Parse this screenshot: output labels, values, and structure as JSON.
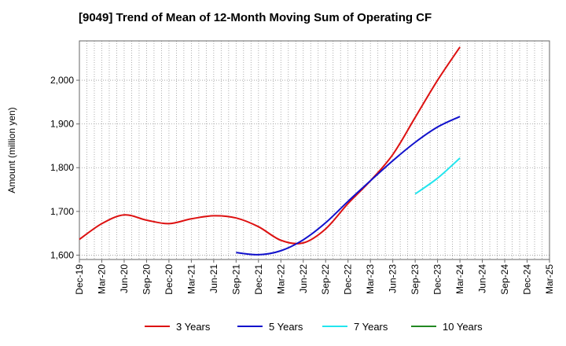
{
  "chart_data": {
    "type": "line",
    "title": "[9049]  Trend of Mean of 12-Month Moving Sum of Operating CF",
    "xlabel": "",
    "ylabel": "Amount (million yen)",
    "ylim": [
      1590,
      2090
    ],
    "yticks": [
      1600,
      1700,
      1800,
      1900,
      2000
    ],
    "ytick_labels": [
      "1,600",
      "1,700",
      "1,800",
      "1,900",
      "2,000"
    ],
    "x_start": "Dec-19",
    "x_end": "Mar-25",
    "x_tick_labels": [
      "Dec-19",
      "Mar-20",
      "Jun-20",
      "Sep-20",
      "Dec-20",
      "Mar-21",
      "Jun-21",
      "Sep-21",
      "Dec-21",
      "Mar-22",
      "Jun-22",
      "Sep-22",
      "Dec-22",
      "Mar-23",
      "Jun-23",
      "Sep-23",
      "Dec-23",
      "Mar-24",
      "Jun-24",
      "Sep-24",
      "Dec-24",
      "Mar-25"
    ],
    "grid": true,
    "legend_position": "bottom",
    "series": [
      {
        "name": "3 Years",
        "color": "#dd1111",
        "x": [
          "Dec-19",
          "Mar-20",
          "Jun-20",
          "Sep-20",
          "Dec-20",
          "Mar-21",
          "Jun-21",
          "Sep-21",
          "Dec-21",
          "Mar-22",
          "Jun-22",
          "Sep-22",
          "Dec-22",
          "Mar-23",
          "Jun-23",
          "Sep-23",
          "Dec-23",
          "Mar-24"
        ],
        "values": [
          1636,
          1672,
          1692,
          1680,
          1672,
          1683,
          1690,
          1685,
          1665,
          1634,
          1628,
          1660,
          1718,
          1770,
          1830,
          1915,
          2000,
          2076
        ]
      },
      {
        "name": "5 Years",
        "color": "#1111cc",
        "x": [
          "Sep-21",
          "Dec-21",
          "Mar-22",
          "Jun-22",
          "Sep-22",
          "Dec-22",
          "Mar-23",
          "Jun-23",
          "Sep-23",
          "Dec-23",
          "Mar-24"
        ],
        "values": [
          1606,
          1601,
          1610,
          1635,
          1674,
          1723,
          1770,
          1816,
          1858,
          1893,
          1917
        ]
      },
      {
        "name": "7 Years",
        "color": "#22e5ee",
        "x": [
          "Sep-23",
          "Dec-23",
          "Mar-24"
        ],
        "values": [
          1740,
          1776,
          1822
        ]
      },
      {
        "name": "10 Years",
        "color": "#228822",
        "x": [],
        "values": []
      }
    ]
  }
}
